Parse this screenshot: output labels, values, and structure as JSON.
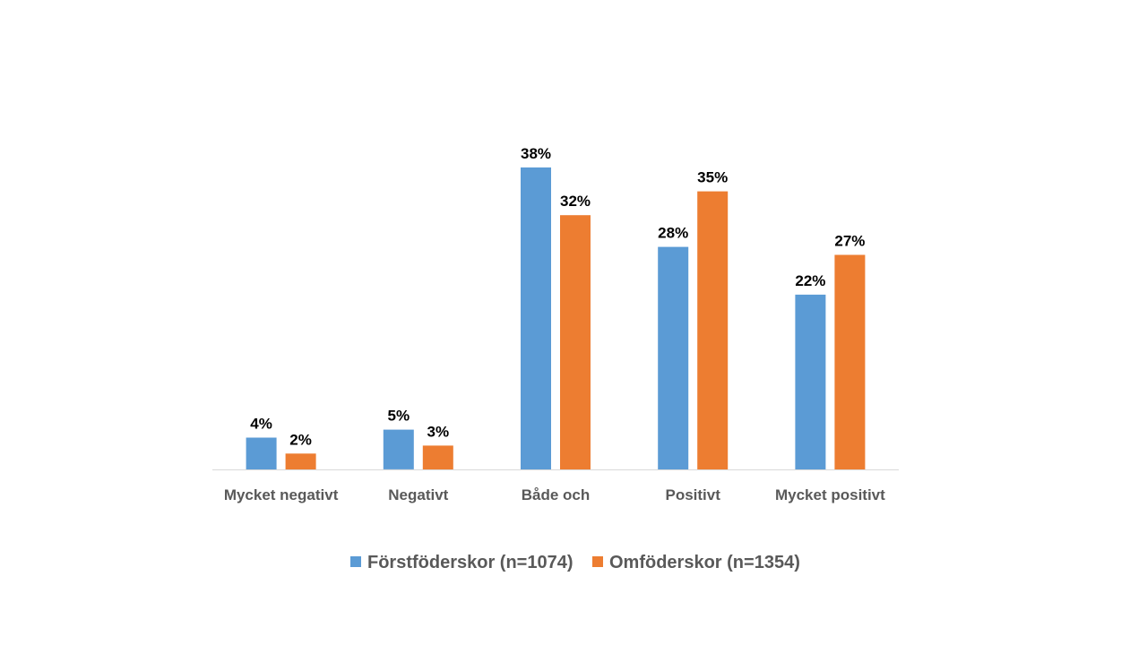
{
  "chart_data": {
    "type": "bar",
    "categories": [
      "Mycket negativt",
      "Negativt",
      "Både och",
      "Positivt",
      "Mycket positivt"
    ],
    "series": [
      {
        "name": "Förstföderskor (n=1074)",
        "values": [
          4,
          5,
          38,
          28,
          22
        ],
        "labels": [
          "4%",
          "5%",
          "38%",
          "28%",
          "22%"
        ],
        "color": "#5B9BD5"
      },
      {
        "name": "Omföderskor (n=1354)",
        "values": [
          2,
          3,
          32,
          35,
          27
        ],
        "labels": [
          "2%",
          "3%",
          "32%",
          "35%",
          "27%"
        ],
        "color": "#ED7D31"
      }
    ],
    "title": "",
    "xlabel": "",
    "ylabel": "",
    "ylim": [
      0,
      40
    ],
    "grid": false,
    "legend_position": "bottom"
  }
}
